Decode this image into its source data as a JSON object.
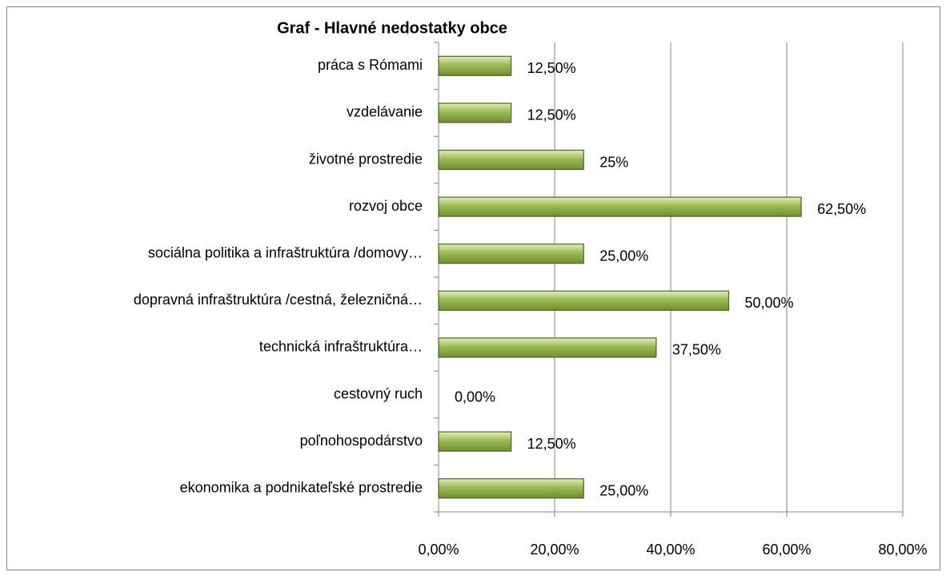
{
  "chart_data": {
    "type": "bar",
    "orientation": "horizontal",
    "title": "Graf - Hlavné nedostatky obce",
    "categories": [
      "práca s Rómami",
      "vzdelávanie",
      "životné prostredie",
      "rozvoj obce",
      "sociálna politika a infraštruktúra /domovy…",
      "dopravná infraštruktúra /cestná, železničná…",
      "technická infraštruktúra…",
      "cestovný ruch",
      "poľnohospodárstvo",
      "ekonomika a podnikateľské prostredie"
    ],
    "values": [
      12.5,
      12.5,
      25,
      62.5,
      25,
      50,
      37.5,
      0,
      12.5,
      25
    ],
    "value_labels": [
      "12,50%",
      "12,50%",
      "25%",
      "62,50%",
      "25,00%",
      "50,00%",
      "37,50%",
      "0,00%",
      "12,50%",
      "25,00%"
    ],
    "color": "#9bbb59",
    "xlim": [
      0,
      80
    ],
    "xticks": [
      {
        "value": 0,
        "label": "0,00%"
      },
      {
        "value": 20,
        "label": "20,00%"
      },
      {
        "value": 40,
        "label": "40,00%"
      },
      {
        "value": 60,
        "label": "60,00%"
      },
      {
        "value": 80,
        "label": "80,00%"
      }
    ],
    "grid": true
  }
}
